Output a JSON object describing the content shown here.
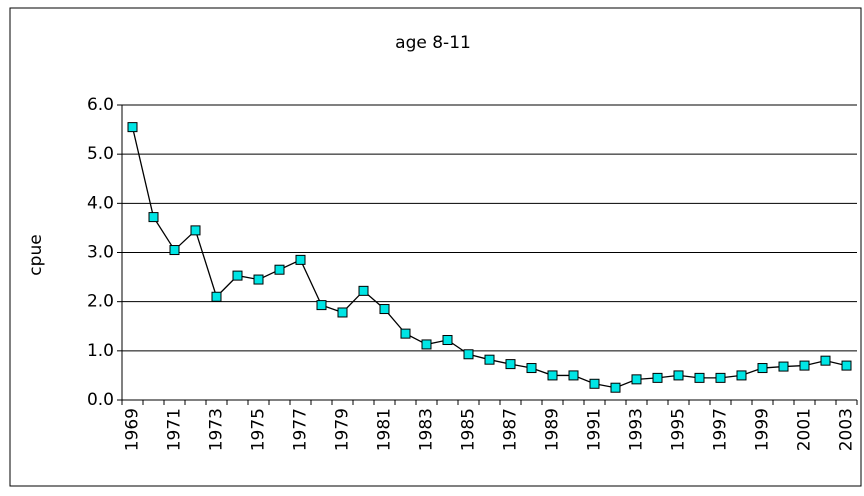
{
  "chart_data": {
    "type": "line",
    "title": "age 8-11",
    "y_label": "cpue",
    "categories": [
      "1969",
      null,
      "1971",
      null,
      "1973",
      null,
      "1975",
      null,
      "1977",
      null,
      "1979",
      null,
      "1981",
      null,
      "1983",
      null,
      "1985",
      null,
      "1987",
      null,
      "1989",
      null,
      "1991",
      null,
      "1993",
      null,
      "1995",
      null,
      "1997",
      null,
      "1999",
      null,
      "2001",
      null,
      "2003"
    ],
    "series": [
      {
        "color": "#00e5e5",
        "values": [
          5.55,
          3.72,
          3.05,
          3.45,
          2.1,
          2.53,
          2.45,
          2.65,
          2.85,
          1.93,
          1.78,
          2.22,
          1.85,
          1.35,
          1.13,
          1.22,
          0.93,
          0.82,
          0.73,
          0.65,
          0.5,
          0.5,
          0.33,
          0.25,
          0.42,
          0.45,
          0.5,
          0.45,
          0.45,
          0.5,
          0.65,
          0.68,
          0.7,
          0.8,
          0.7
        ]
      }
    ],
    "ylim": [
      0,
      6
    ],
    "yticks": [
      {
        "value": 0,
        "label": "0.0"
      },
      {
        "value": 1,
        "label": "1.0"
      },
      {
        "value": 2,
        "label": "2.0"
      },
      {
        "value": 3,
        "label": "3.0"
      },
      {
        "value": 4,
        "label": "4.0"
      },
      {
        "value": 5,
        "label": "5.0"
      },
      {
        "value": 6,
        "label": "6.0"
      }
    ],
    "grid": true
  }
}
